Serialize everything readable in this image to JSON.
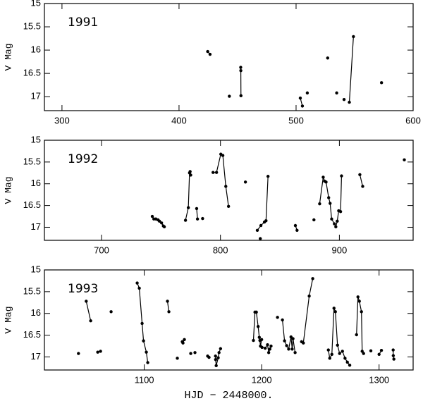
{
  "chart_data": [
    {
      "type": "line",
      "label": "1991",
      "ylabel": "V Mag",
      "xlim": [
        285,
        600
      ],
      "ylim": [
        15,
        17.3
      ],
      "xticks": [
        300,
        400,
        500,
        600
      ],
      "yticks": [
        15,
        15.5,
        16,
        16.5,
        17
      ],
      "color": "#000000",
      "groups": [
        {
          "x": [
            424.5,
            426.5
          ],
          "values": [
            16.03,
            16.09
          ]
        },
        {
          "x": [
            443
          ],
          "values": [
            16.99
          ]
        },
        {
          "x": [
            452.7,
            452.8,
            452.9
          ],
          "values": [
            16.37,
            16.44,
            16.98
          ]
        },
        {
          "x": [
            503.6,
            505.4
          ],
          "values": [
            17.03,
            17.2
          ]
        },
        {
          "x": [
            509.6
          ],
          "values": [
            16.92
          ]
        },
        {
          "x": [
            527
          ],
          "values": [
            16.17
          ]
        },
        {
          "x": [
            534.7
          ],
          "values": [
            16.92
          ]
        },
        {
          "x": [
            541
          ],
          "values": [
            17.06
          ]
        },
        {
          "x": [
            545.5,
            549
          ],
          "values": [
            17.12,
            15.71
          ]
        },
        {
          "x": [
            573
          ],
          "values": [
            16.7
          ]
        }
      ]
    },
    {
      "type": "line",
      "label": "1992",
      "ylabel": "V Mag",
      "xlim": [
        652,
        962
      ],
      "ylim": [
        15,
        17.3
      ],
      "xticks": [
        700,
        800,
        900
      ],
      "yticks": [
        15,
        15.5,
        16,
        16.5,
        17
      ],
      "color": "#000000",
      "groups": [
        {
          "x": [
            742.7,
            744,
            745.7,
            747.5,
            748.7,
            750.5,
            752
          ],
          "values": [
            16.75,
            16.81,
            16.81,
            16.83,
            16.86,
            16.9,
            16.97
          ]
        },
        {
          "x": [
            752.8
          ],
          "values": [
            16.99
          ]
        },
        {
          "x": [
            770.6,
            773,
            774,
            774.5,
            775
          ],
          "values": [
            16.84,
            16.55,
            15.75,
            15.72,
            15.8
          ]
        },
        {
          "x": [
            780,
            780.7
          ],
          "values": [
            16.57,
            16.81
          ]
        },
        {
          "x": [
            785
          ],
          "values": [
            16.8
          ]
        },
        {
          "x": [
            793.8,
            796.7,
            800.3,
            802,
            804.5,
            806.8
          ],
          "values": [
            15.74,
            15.74,
            15.32,
            15.35,
            16.06,
            16.52
          ]
        },
        {
          "x": [
            821
          ],
          "values": [
            15.96
          ]
        },
        {
          "x": [
            831,
            834,
            837,
            838.3,
            840
          ],
          "values": [
            17.07,
            16.96,
            16.88,
            16.85,
            15.83
          ]
        },
        {
          "x": [
            833.5
          ],
          "values": [
            17.26
          ]
        },
        {
          "x": [
            863,
            864.4
          ],
          "values": [
            16.96,
            17.07
          ]
        },
        {
          "x": [
            878.6
          ],
          "values": [
            16.83
          ]
        },
        {
          "x": [
            883.4,
            886.4,
            887.6,
            888.8,
            891,
            892.2,
            893.5,
            895.8,
            897,
            898.2,
            899.4,
            901,
            901.8
          ],
          "values": [
            16.46,
            15.85,
            15.94,
            15.96,
            16.32,
            16.45,
            16.81,
            16.92,
            16.99,
            16.86,
            16.62,
            16.64,
            15.82
          ]
        },
        {
          "x": [
            917.2,
            919.6
          ],
          "values": [
            15.79,
            16.06
          ]
        },
        {
          "x": [
            954.6
          ],
          "values": [
            15.45
          ]
        }
      ]
    },
    {
      "type": "line",
      "label": "1993",
      "ylabel": "V Mag",
      "xlabel": "HJD − 2448000.",
      "xlim": [
        1015,
        1329
      ],
      "ylim": [
        15,
        17.3
      ],
      "xticks": [
        1100,
        1200,
        1300
      ],
      "yticks": [
        15,
        15.5,
        16,
        16.5,
        17
      ],
      "color": "#000000",
      "groups": [
        {
          "x": [
            1044
          ],
          "values": [
            16.92
          ]
        },
        {
          "x": [
            1050.6,
            1054.4
          ],
          "values": [
            15.72,
            16.17
          ]
        },
        {
          "x": [
            1060.4,
            1062.8
          ],
          "values": [
            16.89,
            16.87
          ]
        },
        {
          "x": [
            1071.8
          ],
          "values": [
            15.96
          ]
        },
        {
          "x": [
            1094,
            1095.8,
            1098.2,
            1099.4,
            1101.8,
            1103
          ],
          "values": [
            15.3,
            15.42,
            16.23,
            16.63,
            16.89,
            17.13
          ]
        },
        {
          "x": [
            1119.8,
            1121
          ],
          "values": [
            15.72,
            15.96
          ]
        },
        {
          "x": [
            1128.2
          ],
          "values": [
            17.03
          ]
        },
        {
          "x": [
            1132.4,
            1133,
            1134.2
          ],
          "values": [
            16.65,
            16.68,
            16.6
          ]
        },
        {
          "x": [
            1139.6
          ],
          "values": [
            16.92
          ]
        },
        {
          "x": [
            1143.2
          ],
          "values": [
            16.9
          ]
        },
        {
          "x": [
            1154,
            1155.2
          ],
          "values": [
            16.98,
            17.01
          ]
        },
        {
          "x": [
            1160.7,
            1160.8,
            1161.3,
            1163,
            1163.7,
            1165
          ],
          "values": [
            16.98,
            17.06,
            17.2,
            17.02,
            16.9,
            16.81
          ]
        },
        {
          "x": [
            1193,
            1194.3,
            1195.5,
            1197,
            1198,
            1198.5,
            1199,
            1200
          ],
          "values": [
            16.62,
            15.97,
            15.97,
            16.3,
            16.55,
            16.62,
            16.75,
            16.6
          ]
        },
        {
          "x": [
            1200.3,
            1203,
            1205,
            1206,
            1207,
            1208
          ],
          "values": [
            16.78,
            16.8,
            16.72,
            16.9,
            16.82,
            16.75
          ]
        },
        {
          "x": [
            1213.5
          ],
          "values": [
            16.09
          ]
        },
        {
          "x": [
            1217.7,
            1219.5,
            1221.3,
            1223,
            1225,
            1226,
            1226.7,
            1228.5
          ],
          "values": [
            16.15,
            16.63,
            16.74,
            16.82,
            16.54,
            16.82,
            16.58,
            16.9
          ]
        },
        {
          "x": [
            1234,
            1235.5,
            1240.5,
            1243.5
          ],
          "values": [
            16.65,
            16.68,
            15.6,
            15.2
          ]
        },
        {
          "x": [
            1256.8,
            1258,
            1259.8,
            1261.6,
            1262.8,
            1264.6,
            1266.4,
            1268.8,
            1271,
            1273,
            1275
          ],
          "values": [
            16.84,
            17.03,
            16.94,
            15.88,
            15.96,
            16.73,
            16.92,
            16.87,
            17.03,
            17.12,
            17.19
          ]
        },
        {
          "x": [
            1280.8,
            1282,
            1283.2,
            1285,
            1285.6,
            1286.8
          ],
          "values": [
            16.49,
            15.62,
            15.72,
            15.96,
            16.87,
            16.92
          ]
        },
        {
          "x": [
            1293
          ],
          "values": [
            16.86
          ]
        },
        {
          "x": [
            1300,
            1302
          ],
          "values": [
            16.94,
            16.85
          ]
        },
        {
          "x": [
            1312,
            1312.1,
            1312.6
          ],
          "values": [
            16.84,
            16.97,
            17.05
          ]
        }
      ]
    }
  ]
}
